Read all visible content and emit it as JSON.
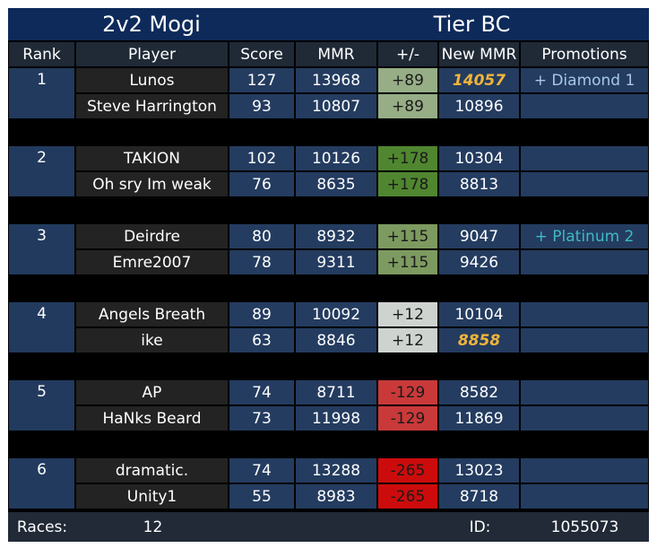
{
  "header": {
    "title": "2v2 Mogi",
    "tier": "Tier BC",
    "columns": [
      "Rank",
      "Player",
      "Score",
      "MMR",
      "+/-",
      "New MMR",
      "Promotions"
    ]
  },
  "colors": {
    "title_bg": "#0e2a5a",
    "header_bg": "#202a37",
    "rank_bg": "#223a5e",
    "player_bg": "#232323",
    "cell_bg": "#243c60",
    "gap_bg": "#000000",
    "highlight_gold": "#f0b43a",
    "promo_diamond": "#a7c7e7",
    "promo_platinum": "#3fb9c4"
  },
  "teams": [
    {
      "rank": "1",
      "delta_bg": "#96ad85",
      "players": [
        {
          "name": "Lunos",
          "score": "127",
          "mmr": "13968",
          "delta": "+89",
          "new_mmr": "14057",
          "new_mmr_highlight": true,
          "promotion": "+ Diamond 1",
          "promotion_color": "#a7c7e7"
        },
        {
          "name": "Steve Harrington",
          "score": "93",
          "mmr": "10807",
          "delta": "+89",
          "new_mmr": "10896",
          "new_mmr_highlight": false,
          "promotion": "",
          "promotion_color": ""
        }
      ]
    },
    {
      "rank": "2",
      "delta_bg": "#508630",
      "players": [
        {
          "name": "TAKION",
          "score": "102",
          "mmr": "10126",
          "delta": "+178",
          "new_mmr": "10304",
          "new_mmr_highlight": false,
          "promotion": "",
          "promotion_color": ""
        },
        {
          "name": "Oh sry Im weak",
          "score": "76",
          "mmr": "8635",
          "delta": "+178",
          "new_mmr": "8813",
          "new_mmr_highlight": false,
          "promotion": "",
          "promotion_color": ""
        }
      ]
    },
    {
      "rank": "3",
      "delta_bg": "#7d9a60",
      "players": [
        {
          "name": "Deirdre",
          "score": "80",
          "mmr": "8932",
          "delta": "+115",
          "new_mmr": "9047",
          "new_mmr_highlight": false,
          "promotion": "+ Platinum 2",
          "promotion_color": "#3fb9c4"
        },
        {
          "name": "Emre2007",
          "score": "78",
          "mmr": "9311",
          "delta": "+115",
          "new_mmr": "9426",
          "new_mmr_highlight": false,
          "promotion": "",
          "promotion_color": ""
        }
      ]
    },
    {
      "rank": "4",
      "delta_bg": "#cfd3cf",
      "players": [
        {
          "name": "Angels Breath",
          "score": "89",
          "mmr": "10092",
          "delta": "+12",
          "new_mmr": "10104",
          "new_mmr_highlight": false,
          "promotion": "",
          "promotion_color": ""
        },
        {
          "name": "ike",
          "score": "63",
          "mmr": "8846",
          "delta": "+12",
          "new_mmr": "8858",
          "new_mmr_highlight": true,
          "promotion": "",
          "promotion_color": ""
        }
      ]
    },
    {
      "rank": "5",
      "delta_bg": "#c9393a",
      "players": [
        {
          "name": "AP",
          "score": "74",
          "mmr": "8711",
          "delta": "-129",
          "new_mmr": "8582",
          "new_mmr_highlight": false,
          "promotion": "",
          "promotion_color": ""
        },
        {
          "name": "HaNks Beard",
          "score": "73",
          "mmr": "11998",
          "delta": "-129",
          "new_mmr": "11869",
          "new_mmr_highlight": false,
          "promotion": "",
          "promotion_color": ""
        }
      ]
    },
    {
      "rank": "6",
      "delta_bg": "#cc0c0c",
      "players": [
        {
          "name": "dramatic.",
          "score": "74",
          "mmr": "13288",
          "delta": "-265",
          "new_mmr": "13023",
          "new_mmr_highlight": false,
          "promotion": "",
          "promotion_color": ""
        },
        {
          "name": "Unity1",
          "score": "55",
          "mmr": "8983",
          "delta": "-265",
          "new_mmr": "8718",
          "new_mmr_highlight": false,
          "promotion": "",
          "promotion_color": ""
        }
      ]
    }
  ],
  "footer": {
    "races_label": "Races:",
    "races_value": "12",
    "id_label": "ID:",
    "id_value": "1055073"
  }
}
